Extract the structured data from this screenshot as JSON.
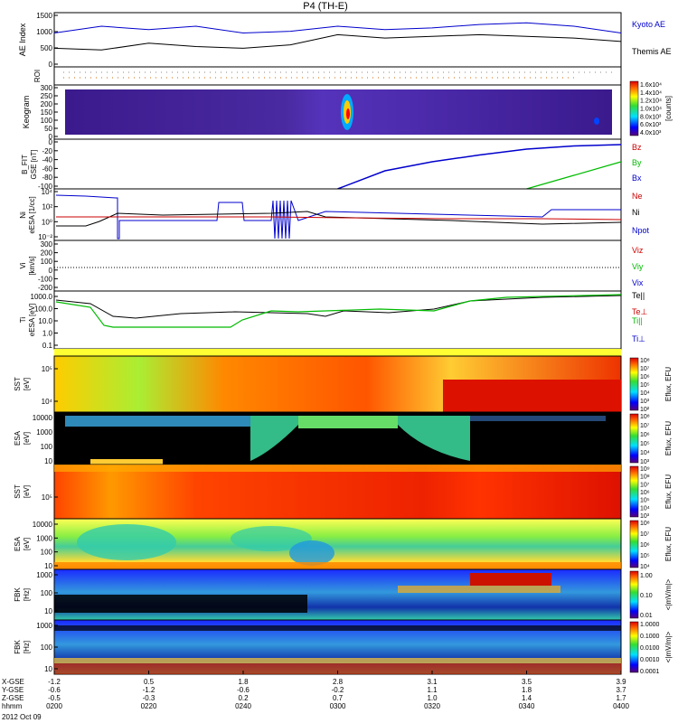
{
  "title": "P4 (TH-E)",
  "time_axis": {
    "ticks": [
      "0200",
      "0220",
      "0240",
      "0300",
      "0320",
      "0340",
      "0400"
    ],
    "rows": [
      {
        "label": "X-GSE",
        "values": [
          "-1.2",
          "0.5",
          "1.8",
          "2.8",
          "3.1",
          "3.5",
          "3.9"
        ]
      },
      {
        "label": "Y-GSE",
        "values": [
          "-0.6",
          "-1.2",
          "-0.6",
          "-0.2",
          "1.1",
          "1.8",
          "3.7"
        ]
      },
      {
        "label": "Z-GSE",
        "values": [
          "-0.5",
          "-0.3",
          "0.2",
          "0.7",
          "1.0",
          "1.4",
          "1.7"
        ]
      },
      {
        "label": "hhmm",
        "values": [
          "0200",
          "0220",
          "0240",
          "0300",
          "0320",
          "0340",
          "0400"
        ]
      }
    ],
    "date": "2012 Oct 09"
  },
  "panels": {
    "ae": {
      "ylabel": "AE Index",
      "ylim": [
        0,
        1600
      ],
      "yticks": [
        "0",
        "500",
        "1000",
        "1500"
      ],
      "legend": [
        {
          "text": "Kyoto AE",
          "color": "#0000cc"
        },
        {
          "text": "Themis AE",
          "color": "#000000"
        }
      ]
    },
    "roi": {
      "ylabel": "ROI"
    },
    "keogram": {
      "ylabel": "Keogram",
      "yticks": [
        "0",
        "50",
        "100",
        "150",
        "200",
        "250",
        "300"
      ],
      "colorbar": {
        "label": "[counts]",
        "ticks": [
          "1.6x10⁴",
          "1.4x10⁴",
          "1.2x10⁴",
          "1.0x10⁴",
          "8.0x10³",
          "6.0x10³",
          "4.0x10³"
        ]
      }
    },
    "bfit": {
      "ylabel": "B_FIT",
      "units": "GSE [nT]",
      "yticks": [
        "0",
        "-20",
        "-40",
        "-60",
        "-80",
        "-100"
      ],
      "legend": [
        {
          "text": "Bz",
          "color": "#cc0000"
        },
        {
          "text": "By",
          "color": "#00bb00"
        },
        {
          "text": "Bx",
          "color": "#0000cc"
        }
      ]
    },
    "ni": {
      "ylabel": "Ni",
      "units": "eESA [1/cc]",
      "yticks": [
        "10⁴",
        "10²",
        "10⁰",
        "10⁻²"
      ],
      "legend": [
        {
          "text": "Ne",
          "color": "#cc0000"
        },
        {
          "text": "Ni",
          "color": "#000000"
        },
        {
          "text": "Npot",
          "color": "#0000cc"
        }
      ]
    },
    "vi": {
      "ylabel": "Vi",
      "units": "[km/s]",
      "yticks": [
        "300",
        "200",
        "100",
        "0",
        "-100",
        "-200"
      ],
      "legend": [
        {
          "text": "Viz",
          "color": "#cc0000"
        },
        {
          "text": "Viy",
          "color": "#00bb00"
        },
        {
          "text": "Vix",
          "color": "#0000cc"
        }
      ]
    },
    "ti": {
      "ylabel": "Ti",
      "units": "eESA [eV]",
      "yticks": [
        "1000.0",
        "100.0",
        "10.0",
        "1.0",
        "0.1"
      ],
      "legend": [
        {
          "text": "Te||",
          "color": "#000000"
        },
        {
          "text": "Te⊥",
          "color": "#cc0000"
        },
        {
          "text": "Ti||",
          "color": "#00bb00"
        },
        {
          "text": "Ti⊥",
          "color": "#0000cc"
        }
      ]
    },
    "sst_i": {
      "ylabel": "SST",
      "units": "[eV]",
      "yticks": [
        "10⁵",
        "10⁴"
      ],
      "colorbar": {
        "label": "Eflux, EFU",
        "ticks": [
          "10⁸",
          "10⁷",
          "10⁶",
          "10⁵",
          "10⁴",
          "10³",
          "10²"
        ]
      }
    },
    "esa_i": {
      "ylabel": "ESA",
      "units": "[eV]",
      "yticks": [
        "10000",
        "1000",
        "100",
        "10"
      ],
      "colorbar": {
        "label": "Eflux, EFU",
        "ticks": [
          "10⁸",
          "10⁷",
          "10⁶",
          "10⁵",
          "10⁴",
          "10³"
        ]
      }
    },
    "sst_e": {
      "ylabel": "SST",
      "units": "[eV]",
      "yticks": [
        "10⁵"
      ],
      "colorbar": {
        "label": "Eflux, EFU",
        "ticks": [
          "10⁹",
          "10⁸",
          "10⁷",
          "10⁶",
          "10⁵",
          "10⁴",
          "10³"
        ]
      }
    },
    "esa_e": {
      "ylabel": "ESA",
      "units": "[eV]",
      "yticks": [
        "10000",
        "1000",
        "100",
        "10"
      ],
      "colorbar": {
        "label": "Eflux, EFU",
        "ticks": [
          "10⁸",
          "10⁷",
          "10⁶",
          "10⁵",
          "10⁴"
        ]
      }
    },
    "fbk_e": {
      "ylabel": "FBK",
      "units": "[Hz]",
      "yticks": [
        "1000",
        "100",
        "10"
      ],
      "colorbar": {
        "label": "<|mV/m|>",
        "ticks": [
          "1.00",
          "0.10",
          "0.01"
        ]
      }
    },
    "fbk_b": {
      "ylabel": "FBK",
      "units": "[Hz]",
      "yticks": [
        "1000",
        "100",
        "10"
      ],
      "colorbar": {
        "label": "<|mV/m|>",
        "ticks": [
          "1.0000",
          "0.1000",
          "0.0100",
          "0.0010",
          "0.0001"
        ]
      }
    }
  },
  "chart_data": {
    "type": "line",
    "title": "P4 (TH-E)",
    "x_unit": "UT hhmm",
    "x": [
      "0200",
      "0210",
      "0220",
      "0230",
      "0240",
      "0250",
      "0300",
      "0310",
      "0320",
      "0330",
      "0340",
      "0350",
      "0400"
    ],
    "series": [
      {
        "name": "Kyoto AE",
        "values": [
          1000,
          1200,
          1100,
          1200,
          1000,
          1050,
          1200,
          1100,
          1150,
          1250,
          1300,
          1200,
          1000
        ]
      },
      {
        "name": "Themis AE",
        "values": [
          550,
          500,
          700,
          600,
          550,
          650,
          950,
          850,
          900,
          950,
          900,
          850,
          750
        ]
      },
      {
        "name": "Bx",
        "values": [
          null,
          null,
          null,
          null,
          null,
          null,
          -100,
          -60,
          -40,
          -25,
          -12,
          -5,
          -2
        ]
      },
      {
        "name": "By",
        "values": [
          null,
          null,
          null,
          null,
          null,
          null,
          null,
          null,
          null,
          null,
          -100,
          -70,
          -40
        ]
      }
    ]
  }
}
